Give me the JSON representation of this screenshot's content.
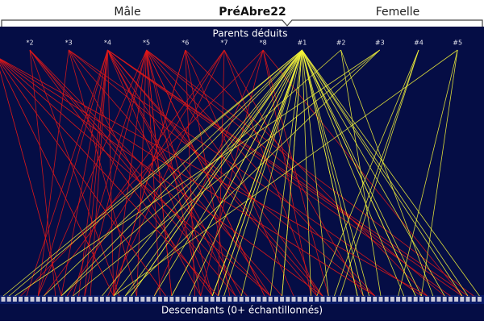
{
  "header": {
    "left": "Mâle",
    "title": "PréAbre22",
    "right": "Femelle"
  },
  "panel": {
    "title": "Parents déduits",
    "parents": [
      "*2",
      "*3",
      "*4",
      "*5",
      "*6",
      "*7",
      "*8",
      "#1",
      "#2",
      "#3",
      "#4",
      "#5"
    ],
    "footer": "Descendants (0+ échantillonnés)"
  }
}
